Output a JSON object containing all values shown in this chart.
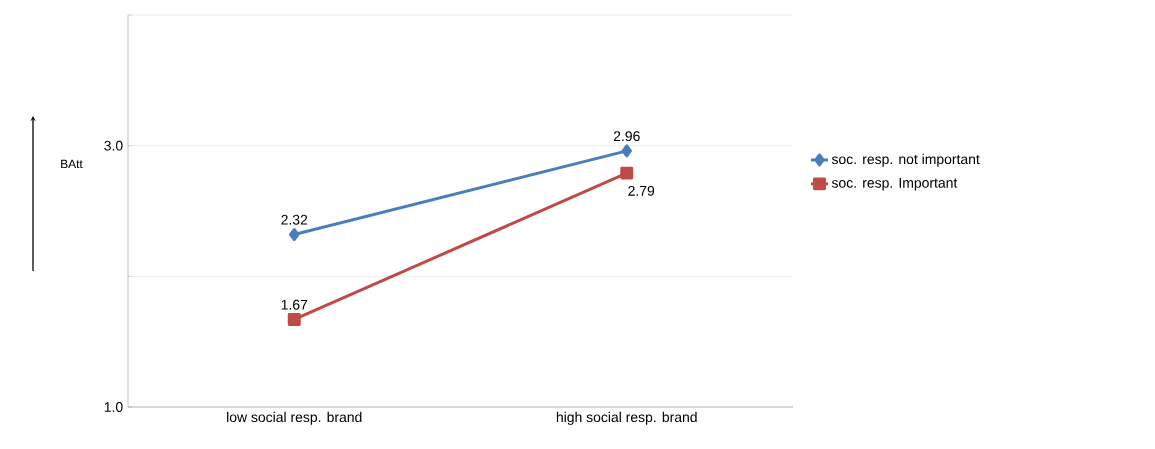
{
  "chart_data": {
    "type": "line",
    "ylabel": "BAtt",
    "categories": [
      "low social resp. brand",
      "high social resp. brand"
    ],
    "series": [
      {
        "name": "soc. resp. not important",
        "color": "#4a7ebb",
        "marker": "diamond",
        "values": [
          2.32,
          2.96
        ]
      },
      {
        "name": "soc. resp. Important",
        "color": "#be4b48",
        "marker": "square",
        "values": [
          1.67,
          2.79
        ]
      }
    ],
    "ylim": [
      1.0,
      4.0
    ],
    "yticks": [
      {
        "value": 1.0,
        "label": "1.0"
      },
      {
        "value": 2.0,
        "label": null
      },
      {
        "value": 3.0,
        "label": "3.0"
      },
      {
        "value": 4.0,
        "label": null
      }
    ],
    "grid": "y",
    "legend": "right",
    "data_labels": true
  }
}
